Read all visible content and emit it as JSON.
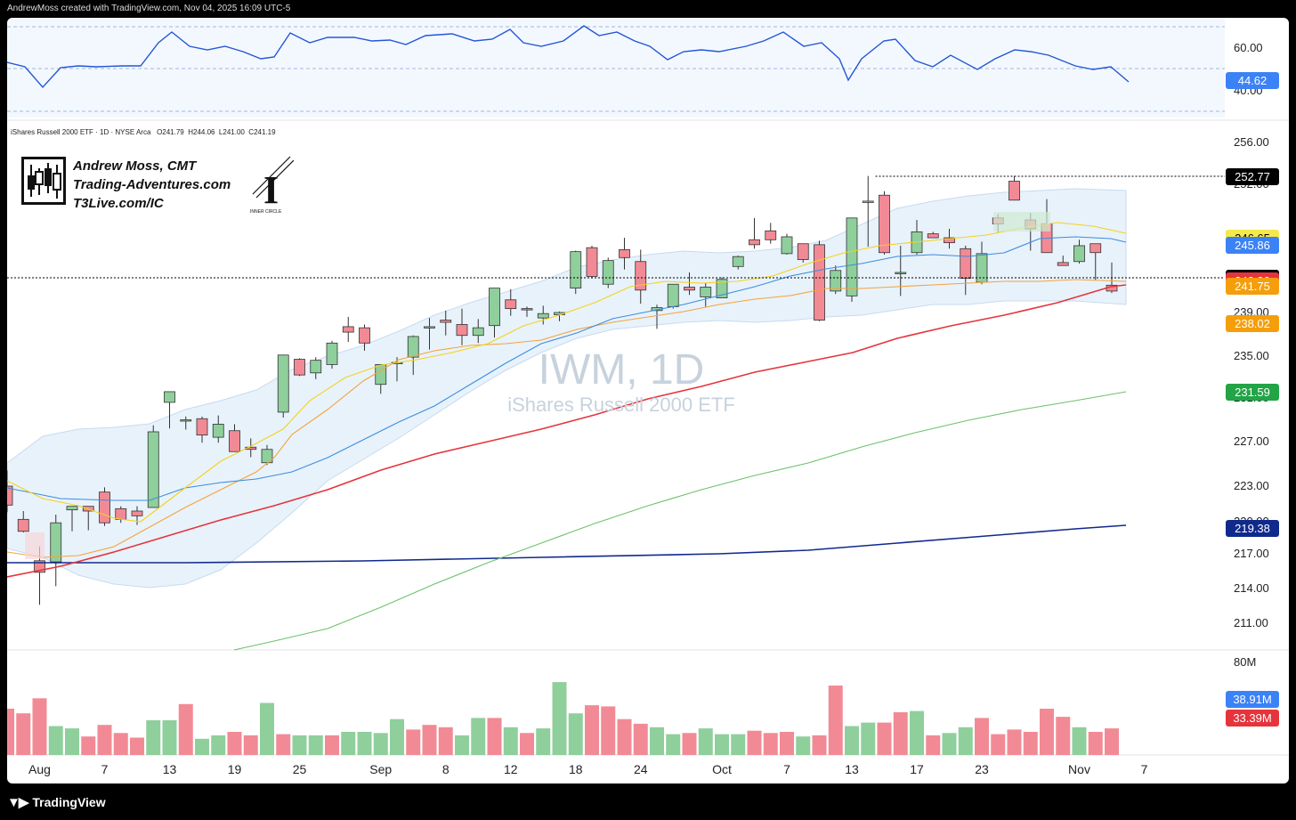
{
  "header": {
    "created_by": "AndrewMoss created with TradingView.com, Nov 04, 2025 16:09 UTC-5"
  },
  "symbol": {
    "info": "iShares Russell 2000 ETF · 1D · NYSE Arca",
    "open": "O241.79",
    "high": "H244.06",
    "low": "L241.00",
    "close": "C241.19",
    "watermark_ticker": "IWM, 1D",
    "watermark_name": "iShares Russell 2000 ETF"
  },
  "branding": {
    "line1": "Andrew Moss, CMT",
    "line2": "Trading-Adventures.com",
    "line3": "T3Live.com/IC",
    "logo_caption": "INNER CIRCLE"
  },
  "footer": {
    "logo_text": "TradingView"
  },
  "colors": {
    "up": "#8fcf9c",
    "down": "#f28a95",
    "ema8": "#f5d21b",
    "ema21": "#f5a33a",
    "sma20": "#3b8de0",
    "sma50": "#e5343c",
    "sma100": "#6cc26a",
    "sma200": "#102a8c",
    "band_fill": "#e8f2fb"
  },
  "chart_data": {
    "type": "candlestick",
    "title": "IWM, 1D",
    "price_ticks": [
      "256.00",
      "252.00",
      "239.00",
      "235.00",
      "231.00",
      "227.00",
      "223.00",
      "220.00",
      "217.00",
      "214.00",
      "211.00"
    ],
    "x_ticks": [
      {
        "label": "Aug",
        "i": 2
      },
      {
        "label": "7",
        "i": 6
      },
      {
        "label": "13",
        "i": 10
      },
      {
        "label": "19",
        "i": 14
      },
      {
        "label": "25",
        "i": 18
      },
      {
        "label": "Sep",
        "i": 23
      },
      {
        "label": "8",
        "i": 27
      },
      {
        "label": "12",
        "i": 31
      },
      {
        "label": "18",
        "i": 35
      },
      {
        "label": "24",
        "i": 39
      },
      {
        "label": "Oct",
        "i": 44
      },
      {
        "label": "7",
        "i": 48
      },
      {
        "label": "13",
        "i": 52
      },
      {
        "label": "17",
        "i": 56
      },
      {
        "label": "23",
        "i": 60
      },
      {
        "label": "Nov",
        "i": 66
      },
      {
        "label": "7",
        "i": 70
      }
    ],
    "last_candle": {
      "open": 241.79,
      "high": 244.06,
      "low": 241.0,
      "close": 241.19
    },
    "price_badges": [
      {
        "label": "252.77",
        "price": 252.77,
        "color": "#000000"
      },
      {
        "label": "246.65",
        "price": 246.65,
        "color": "#f5e84a",
        "text": "#000000"
      },
      {
        "label": "245.86",
        "price": 245.86,
        "color": "#3b82f6"
      },
      {
        "label": "242.56",
        "price": 242.56,
        "color": "#000000"
      },
      {
        "label": "242.30",
        "price": 242.3,
        "color": "#e5343c"
      },
      {
        "label": "241.75",
        "price": 241.75,
        "color": "#f59e0b"
      },
      {
        "label": "238.02",
        "price": 238.02,
        "color": "#f59e0b"
      },
      {
        "label": "231.59",
        "price": 231.59,
        "color": "#22a447"
      },
      {
        "label": "219.38",
        "price": 219.38,
        "color": "#102a8c"
      }
    ],
    "rsi": {
      "ticks": [
        "60.00",
        "40.00"
      ],
      "value": 44.62,
      "badge": "44.62"
    },
    "volume": {
      "ticks": [
        "80M"
      ],
      "badges": [
        {
          "label": "38.91M",
          "color": "#3b82f6"
        },
        {
          "label": "33.39M",
          "color": "#e5343c"
        }
      ]
    }
  }
}
